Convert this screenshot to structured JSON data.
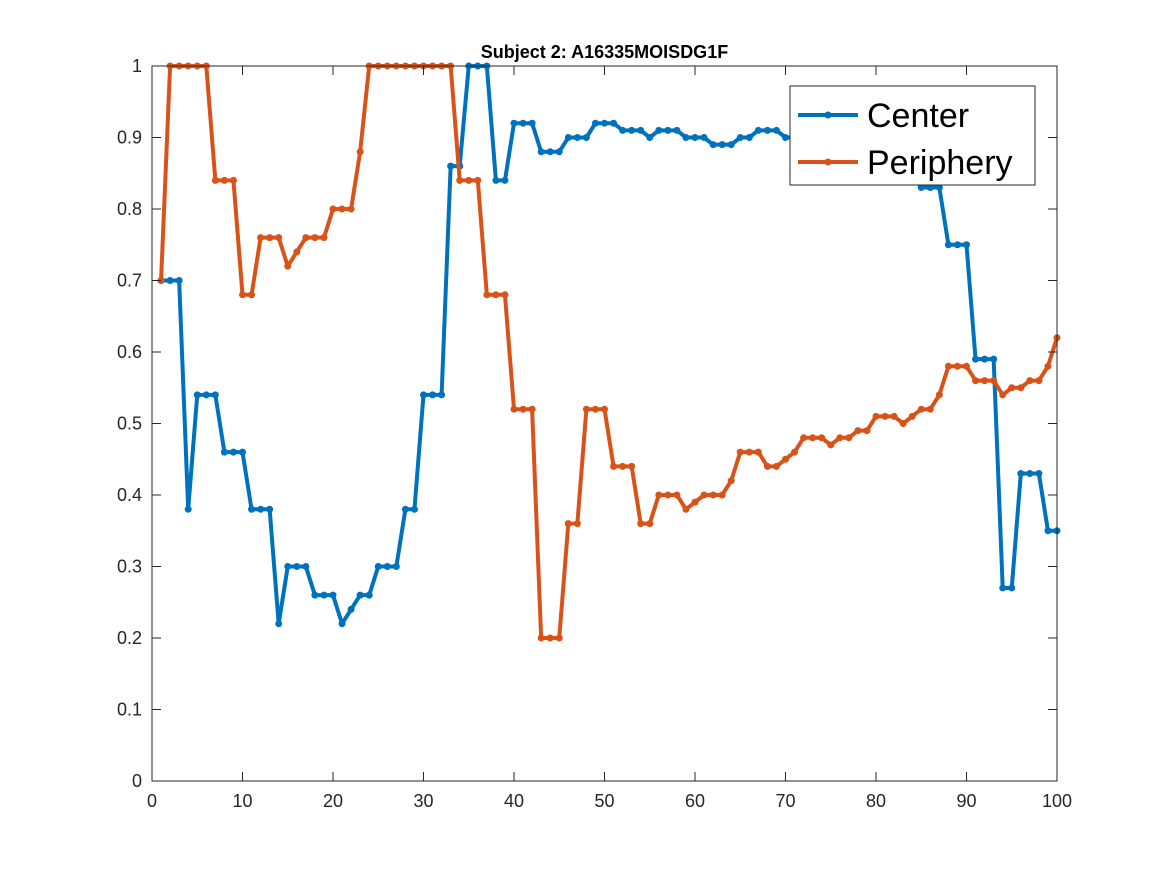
{
  "chart_data": {
    "type": "line",
    "title": "Subject 2: A16335MOISDG1F",
    "xlabel": "",
    "ylabel": "",
    "xlim": [
      0,
      100
    ],
    "ylim": [
      0,
      1
    ],
    "xticks": [
      "0",
      "10",
      "20",
      "30",
      "40",
      "50",
      "60",
      "70",
      "80",
      "90",
      "100"
    ],
    "yticks": [
      "0",
      "0.1",
      "0.2",
      "0.3",
      "0.4",
      "0.5",
      "0.6",
      "0.7",
      "0.8",
      "0.9",
      "1"
    ],
    "grid": false,
    "legend_position": "top-right",
    "x": [
      1,
      2,
      3,
      4,
      5,
      6,
      7,
      8,
      9,
      10,
      11,
      12,
      13,
      14,
      15,
      16,
      17,
      18,
      19,
      20,
      21,
      22,
      23,
      24,
      25,
      26,
      27,
      28,
      29,
      30,
      31,
      32,
      33,
      34,
      35,
      36,
      37,
      38,
      39,
      40,
      41,
      42,
      43,
      44,
      45,
      46,
      47,
      48,
      49,
      50,
      51,
      52,
      53,
      54,
      55,
      56,
      57,
      58,
      59,
      60,
      61,
      62,
      63,
      64,
      65,
      66,
      67,
      68,
      69,
      70,
      71,
      72,
      73,
      74,
      75,
      76,
      77,
      78,
      79,
      80,
      81,
      82,
      83,
      84,
      85,
      86,
      87,
      88,
      89,
      90,
      91,
      92,
      93,
      94,
      95,
      96,
      97,
      98,
      99,
      100
    ],
    "series": [
      {
        "name": "Center",
        "color": "#0072BD",
        "values": [
          0.7,
          0.7,
          0.7,
          0.38,
          0.54,
          0.54,
          0.54,
          0.46,
          0.46,
          0.46,
          0.38,
          0.38,
          0.38,
          0.22,
          0.3,
          0.3,
          0.3,
          0.26,
          0.26,
          0.26,
          0.22,
          0.24,
          0.26,
          0.26,
          0.3,
          0.3,
          0.3,
          0.38,
          0.38,
          0.54,
          0.54,
          0.54,
          0.86,
          0.86,
          1.0,
          1.0,
          1.0,
          0.84,
          0.84,
          0.92,
          0.92,
          0.92,
          0.88,
          0.88,
          0.88,
          0.9,
          0.9,
          0.9,
          0.92,
          0.92,
          0.92,
          0.91,
          0.91,
          0.91,
          0.9,
          0.91,
          0.91,
          0.91,
          0.9,
          0.9,
          0.9,
          0.89,
          0.89,
          0.89,
          0.9,
          0.9,
          0.91,
          0.91,
          0.91,
          0.9,
          0.9,
          0.9,
          0.89,
          0.89,
          0.89,
          0.89,
          0.88,
          0.88,
          0.88,
          0.87,
          0.87,
          0.86,
          0.86,
          0.85,
          0.83,
          0.83,
          0.83,
          0.75,
          0.75,
          0.75,
          0.59,
          0.59,
          0.59,
          0.27,
          0.27,
          0.43,
          0.43,
          0.43,
          0.35,
          0.35
        ]
      },
      {
        "name": "Periphery",
        "color": "#D95319",
        "values": [
          0.7,
          1.0,
          1.0,
          1.0,
          1.0,
          1.0,
          0.84,
          0.84,
          0.84,
          0.68,
          0.68,
          0.76,
          0.76,
          0.76,
          0.72,
          0.74,
          0.76,
          0.76,
          0.76,
          0.8,
          0.8,
          0.8,
          0.88,
          1.0,
          1.0,
          1.0,
          1.0,
          1.0,
          1.0,
          1.0,
          1.0,
          1.0,
          1.0,
          0.84,
          0.84,
          0.84,
          0.68,
          0.68,
          0.68,
          0.52,
          0.52,
          0.52,
          0.2,
          0.2,
          0.2,
          0.36,
          0.36,
          0.52,
          0.52,
          0.52,
          0.44,
          0.44,
          0.44,
          0.36,
          0.36,
          0.4,
          0.4,
          0.4,
          0.38,
          0.39,
          0.4,
          0.4,
          0.4,
          0.42,
          0.46,
          0.46,
          0.46,
          0.44,
          0.44,
          0.45,
          0.46,
          0.48,
          0.48,
          0.48,
          0.47,
          0.48,
          0.48,
          0.49,
          0.49,
          0.51,
          0.51,
          0.51,
          0.5,
          0.51,
          0.52,
          0.52,
          0.54,
          0.58,
          0.58,
          0.58,
          0.56,
          0.56,
          0.56,
          0.54,
          0.55,
          0.55,
          0.56,
          0.56,
          0.58,
          0.62
        ]
      }
    ]
  }
}
